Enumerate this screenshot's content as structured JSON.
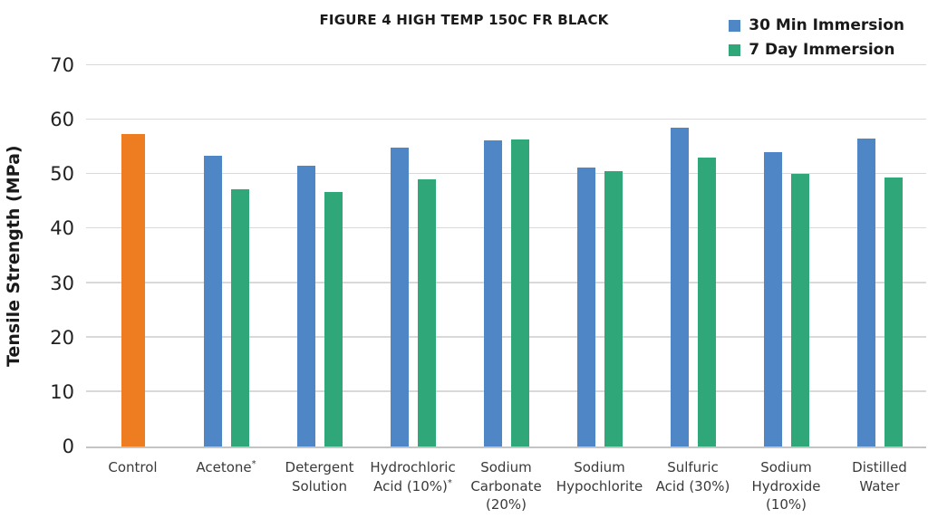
{
  "title": "FIGURE 4 HIGH TEMP 150C FR BLACK",
  "y_axis_title": "Tensile Strength (MPa)",
  "legend": [
    {
      "label": "30 Min Immersion",
      "color": "#4E86C6"
    },
    {
      "label": "7 Day Immersion",
      "color": "#2FA779"
    }
  ],
  "colors": {
    "control_bar": "#EE7D22",
    "series_30min": "#4E86C6",
    "series_7day": "#2FA779",
    "gridline": "#d9d9d9",
    "axis_line": "#c4c4c4",
    "text_dark": "#1a1a1a"
  },
  "chart_data": {
    "type": "bar",
    "title": "FIGURE 4 HIGH TEMP 150C FR BLACK",
    "xlabel": "",
    "ylabel": "Tensile Strength (MPa)",
    "ylim": [
      0,
      70
    ],
    "yticks": [
      0,
      10,
      20,
      30,
      40,
      50,
      60,
      70
    ],
    "grid": true,
    "legend_position": "top-right",
    "categories": [
      "Control",
      "Acetone*",
      "Detergent Solution",
      "Hydrochloric Acid (10%)*",
      "Sodium Carbonate (20%)",
      "Sodium Hypochlorite",
      "Sulfuric Acid (30%)",
      "Sodium Hydroxide (10%)",
      "Distilled Water"
    ],
    "category_lines": [
      [
        "Control"
      ],
      [
        "Acetone*"
      ],
      [
        "Detergent",
        "Solution"
      ],
      [
        "Hydrochloric",
        "Acid (10%)*"
      ],
      [
        "Sodium",
        "Carbonate",
        "(20%)"
      ],
      [
        "Sodium",
        "Hypochlorite"
      ],
      [
        "Sulfuric",
        "Acid (30%)"
      ],
      [
        "Sodium",
        "Hydroxide",
        "(10%)"
      ],
      [
        "Distilled",
        "Water"
      ]
    ],
    "control": {
      "label": "Control",
      "value": 57.4,
      "color": "#EE7D22"
    },
    "series": [
      {
        "name": "30 Min Immersion",
        "color": "#4E86C6",
        "values": [
          null,
          53.3,
          51.6,
          54.8,
          56.2,
          51.2,
          58.5,
          54.1,
          56.6
        ]
      },
      {
        "name": "7 Day Immersion",
        "color": "#2FA779",
        "values": [
          null,
          47.3,
          46.8,
          49.1,
          56.4,
          50.5,
          53.1,
          50.1,
          49.4
        ]
      }
    ]
  }
}
